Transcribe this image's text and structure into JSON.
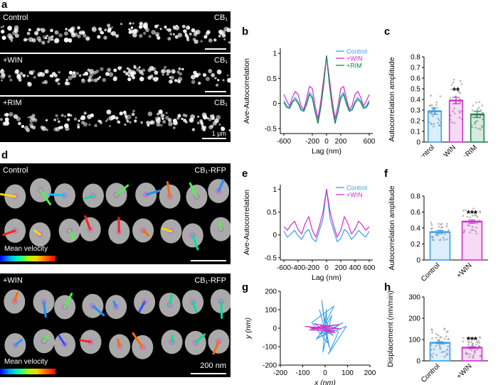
{
  "panel_letters": {
    "a": "a",
    "b": "b",
    "c": "c",
    "d": "d",
    "e": "e",
    "f": "f",
    "g": "g",
    "h": "h"
  },
  "panel_a": {
    "rows": [
      {
        "condition": "Control",
        "marker": "CB₁"
      },
      {
        "condition": "+WIN",
        "marker": "CB₁"
      },
      {
        "condition": "+RIM",
        "marker": "CB₁"
      }
    ],
    "scale_label": "1 μm"
  },
  "panel_d": {
    "rows": [
      {
        "condition": "Control",
        "marker": "CB₁-RFP",
        "colorbar_label": "Mean velocity"
      },
      {
        "condition": "+WIN",
        "marker": "CB₁-RFP",
        "colorbar_label": "Mean velocity"
      }
    ],
    "scale_label": "200 nm"
  },
  "colors": {
    "control": "#3aa0e8",
    "win": "#cc33cc",
    "rim": "#1b8a4a"
  },
  "chart_data": [
    {
      "id": "b",
      "type": "line",
      "xlabel": "Lag (nm)",
      "ylabel": "Ave-Autocorrelation",
      "xlim": [
        -650,
        650
      ],
      "ylim": [
        -0.6,
        1.1
      ],
      "xticks": [
        -600,
        -200,
        0,
        200,
        600
      ],
      "yticks": [
        -0.5,
        0,
        0.5,
        1
      ],
      "legend_position": "top-right",
      "series": [
        {
          "name": "Control",
          "color": "#3aa0e8",
          "x": [
            -600,
            -560,
            -520,
            -480,
            -440,
            -400,
            -360,
            -320,
            -280,
            -240,
            -200,
            -160,
            -120,
            -80,
            -40,
            0,
            40,
            80,
            120,
            160,
            200,
            240,
            280,
            320,
            360,
            400,
            440,
            480,
            520,
            560,
            600
          ],
          "y": [
            0.06,
            -0.05,
            -0.08,
            0.05,
            0.12,
            0.04,
            -0.1,
            -0.14,
            0.02,
            0.22,
            0.15,
            -0.15,
            -0.36,
            -0.05,
            0.4,
            0.95,
            0.4,
            -0.05,
            -0.36,
            -0.15,
            0.15,
            0.22,
            0.02,
            -0.14,
            -0.1,
            0.04,
            0.12,
            0.05,
            -0.08,
            -0.05,
            0.06
          ]
        },
        {
          "name": "+WIN",
          "color": "#cc33cc",
          "x": [
            -600,
            -560,
            -520,
            -480,
            -440,
            -400,
            -360,
            -320,
            -280,
            -240,
            -200,
            -160,
            -120,
            -80,
            -40,
            0,
            40,
            80,
            120,
            160,
            200,
            240,
            280,
            320,
            360,
            400,
            440,
            480,
            520,
            560,
            600
          ],
          "y": [
            0.18,
            0.05,
            -0.05,
            0.12,
            0.24,
            0.18,
            -0.04,
            -0.12,
            0.1,
            0.34,
            0.3,
            -0.05,
            -0.3,
            0.05,
            0.5,
            0.95,
            0.5,
            0.05,
            -0.3,
            -0.05,
            0.3,
            0.34,
            0.1,
            -0.12,
            -0.04,
            0.18,
            0.24,
            0.12,
            -0.05,
            0.05,
            0.18
          ]
        },
        {
          "name": "+RIM",
          "color": "#1b8a4a",
          "x": [
            -600,
            -560,
            -520,
            -480,
            -440,
            -400,
            -360,
            -320,
            -280,
            -240,
            -200,
            -160,
            -120,
            -80,
            -40,
            0,
            40,
            80,
            120,
            160,
            200,
            240,
            280,
            320,
            360,
            400,
            440,
            480,
            520,
            560,
            600
          ],
          "y": [
            0.02,
            -0.08,
            -0.1,
            0.02,
            0.08,
            0.0,
            -0.13,
            -0.16,
            -0.02,
            0.18,
            0.1,
            -0.18,
            -0.4,
            -0.08,
            0.37,
            0.95,
            0.37,
            -0.08,
            -0.4,
            -0.18,
            0.1,
            0.18,
            -0.02,
            -0.16,
            -0.13,
            0.0,
            0.08,
            0.02,
            -0.1,
            -0.08,
            0.02
          ]
        }
      ]
    },
    {
      "id": "c",
      "type": "bar",
      "ylabel": "Autocorrelation amplitude",
      "categories": [
        "Control",
        "+WIN",
        "+RIM"
      ],
      "values": [
        0.29,
        0.39,
        0.26
      ],
      "errors": [
        0.03,
        0.03,
        0.03
      ],
      "colors": [
        "#3aa0e8",
        "#cc33cc",
        "#1b8a4a"
      ],
      "ylim": [
        0,
        0.8
      ],
      "yticks": [
        0,
        0.1,
        0.2,
        0.3,
        0.4,
        0.5,
        0.6,
        0.7,
        0.8
      ],
      "significance": [
        "",
        "**",
        ""
      ]
    },
    {
      "id": "e",
      "type": "line",
      "xlabel": "Lag (nm)",
      "ylabel": "Ave-Autocorrelation",
      "xlim": [
        -650,
        650
      ],
      "ylim": [
        -0.55,
        1.1
      ],
      "xticks": [
        -600,
        -400,
        -200,
        0,
        200,
        400,
        600
      ],
      "yticks": [
        -0.5,
        0,
        0.5,
        1
      ],
      "legend_position": "top-right",
      "series": [
        {
          "name": "Control",
          "color": "#3aa0e8",
          "x": [
            -600,
            -550,
            -500,
            -450,
            -400,
            -350,
            -300,
            -250,
            -200,
            -150,
            -100,
            -50,
            0,
            50,
            100,
            150,
            200,
            250,
            300,
            350,
            400,
            450,
            500,
            550,
            600
          ],
          "y": [
            0.08,
            -0.05,
            0.02,
            0.1,
            -0.02,
            -0.1,
            0.05,
            0.12,
            -0.08,
            -0.15,
            0.1,
            0.35,
            1.0,
            0.35,
            0.1,
            -0.15,
            -0.08,
            0.12,
            0.05,
            -0.1,
            -0.02,
            0.1,
            0.02,
            -0.05,
            0.08
          ]
        },
        {
          "name": "+WIN",
          "color": "#cc33cc",
          "x": [
            -600,
            -550,
            -500,
            -450,
            -400,
            -350,
            -300,
            -250,
            -200,
            -150,
            -100,
            -50,
            0,
            50,
            100,
            150,
            200,
            250,
            300,
            350,
            400,
            450,
            500,
            550,
            600
          ],
          "y": [
            0.18,
            0.1,
            0.22,
            0.3,
            0.12,
            0.02,
            0.25,
            0.4,
            0.1,
            -0.05,
            0.2,
            0.5,
            1.0,
            0.5,
            0.2,
            -0.05,
            0.1,
            0.4,
            0.25,
            0.02,
            0.12,
            0.3,
            0.22,
            0.1,
            0.18
          ]
        }
      ]
    },
    {
      "id": "f",
      "type": "bar",
      "ylabel": "Autocorrelation amplitude",
      "categories": [
        "Control",
        "+WIN"
      ],
      "values": [
        0.35,
        0.48
      ],
      "errors": [
        0.02,
        0.02
      ],
      "colors": [
        "#3aa0e8",
        "#cc33cc"
      ],
      "ylim": [
        0,
        0.8
      ],
      "yticks": [
        0,
        0.2,
        0.4,
        0.6,
        0.8
      ],
      "significance": [
        "",
        "***"
      ]
    },
    {
      "id": "g",
      "type": "line",
      "xlabel": "x (nm)",
      "ylabel": "y (nm)",
      "xlim": [
        -200,
        200
      ],
      "ylim": [
        -200,
        200
      ],
      "xticks": [
        -200,
        -100,
        0,
        100,
        200
      ],
      "yticks": [
        -200,
        -100,
        0,
        100,
        200
      ],
      "series": [
        {
          "name": "",
          "color": "#3aa0e8",
          "x": [
            0,
            -15,
            10,
            -25,
            20,
            -5,
            35,
            -20,
            60,
            15,
            95,
            -30,
            40,
            -60,
            10,
            5,
            -10,
            30,
            -15,
            80,
            -40,
            0
          ],
          "y": [
            0,
            150,
            -60,
            100,
            -110,
            60,
            -40,
            20,
            -20,
            -140,
            10,
            -50,
            120,
            30,
            -80,
            100,
            -130,
            70,
            -30,
            30,
            -60,
            0
          ]
        },
        {
          "name": "",
          "color": "#cc33cc",
          "x": [
            0,
            -90,
            40,
            -70,
            60,
            -40,
            70,
            -50,
            25,
            -20,
            45,
            -65,
            0
          ],
          "y": [
            0,
            10,
            -15,
            -10,
            20,
            5,
            -5,
            25,
            -30,
            15,
            -25,
            0,
            0
          ]
        }
      ]
    },
    {
      "id": "h",
      "type": "bar",
      "ylabel": "Displacement (nm/min)",
      "categories": [
        "Control",
        "+WIN"
      ],
      "values": [
        85,
        62
      ],
      "errors": [
        5,
        4
      ],
      "colors": [
        "#3aa0e8",
        "#cc33cc"
      ],
      "ylim": [
        0,
        300
      ],
      "yticks": [
        0,
        100,
        200,
        300
      ],
      "significance": [
        "",
        "***"
      ]
    }
  ]
}
